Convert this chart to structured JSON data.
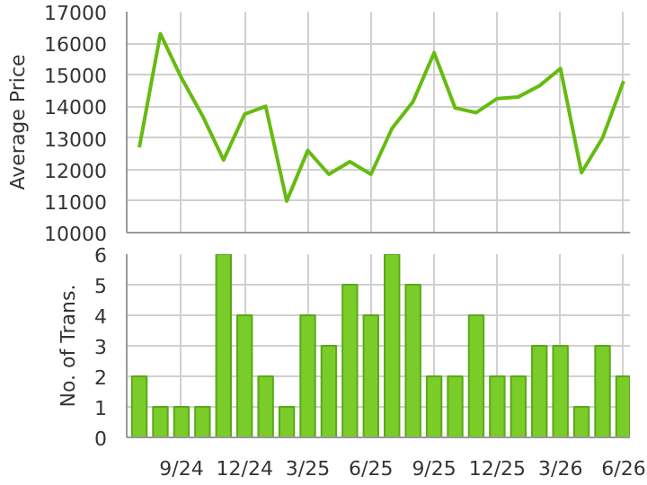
{
  "chart_data": [
    {
      "type": "line",
      "ylabel": "Average Price",
      "categories": [
        null,
        null,
        null,
        null,
        null,
        null,
        null,
        null,
        null,
        null,
        null,
        null,
        null,
        null,
        null,
        null,
        null,
        null,
        null,
        null,
        null,
        null,
        null,
        null
      ],
      "series": [
        {
          "color": "#66bb11",
          "values": [
            12700,
            16300,
            14900,
            13700,
            12300,
            13750,
            14000,
            11000,
            12600,
            11850,
            12250,
            11850,
            13300,
            14150,
            15700,
            13950,
            13800,
            14250,
            14300,
            14650,
            15200,
            11900,
            13000,
            14800
          ]
        }
      ],
      "ylim": [
        10000,
        17000
      ],
      "yticks": [
        10000,
        11000,
        12000,
        13000,
        14000,
        15000,
        16000,
        17000
      ],
      "grid": true,
      "tick_labels": "y",
      "marker": "none",
      "line_style": "solid"
    },
    {
      "type": "bar",
      "ylabel": "No. of Trans.",
      "categories": [
        null,
        null,
        "9/24",
        null,
        null,
        "12/24",
        null,
        null,
        "3/25",
        null,
        null,
        "6/25",
        null,
        null,
        "9/25",
        null,
        null,
        "12/25",
        null,
        null,
        "3/26",
        null,
        null,
        "6/26"
      ],
      "series": [
        {
          "color": "#7acc29",
          "values": [
            2,
            1,
            1,
            1,
            6,
            4,
            2,
            1,
            4,
            3,
            5,
            4,
            6,
            5,
            2,
            2,
            4,
            2,
            2,
            3,
            3,
            1,
            3,
            2
          ]
        }
      ],
      "ylim": [
        0,
        6
      ],
      "yticks": [
        0,
        1,
        2,
        3,
        4,
        5,
        6
      ],
      "grid": true
    }
  ]
}
